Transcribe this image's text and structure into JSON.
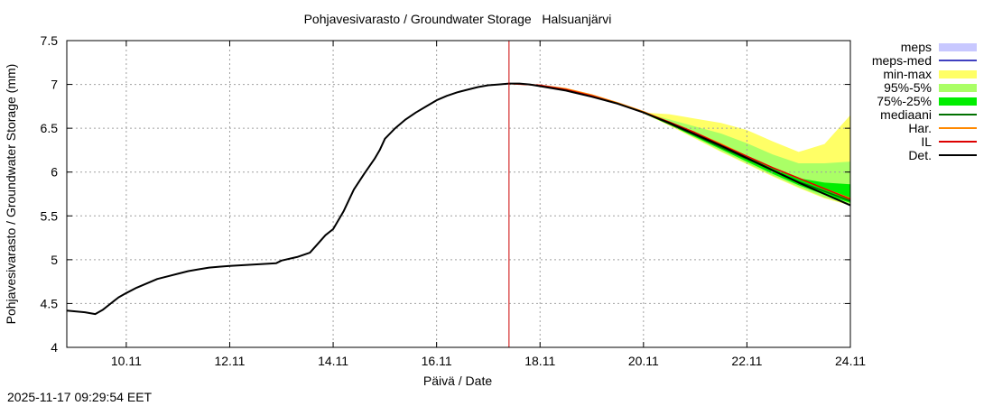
{
  "chart_data": {
    "type": "area",
    "title": "Pohjavesivarasto / Groundwater Storage   Halsuanjärvi",
    "xlabel": "Päivä / Date",
    "ylabel": "Pohjavesivarasto / Groundwater Storage (mm)",
    "xlim": [
      8.85,
      24.0
    ],
    "ylim": [
      4.0,
      7.5
    ],
    "xticks": [
      10,
      12,
      14,
      16,
      18,
      20,
      22,
      24
    ],
    "xtick_labels": [
      "10.11",
      "12.11",
      "14.11",
      "16.11",
      "18.11",
      "20.11",
      "22.11",
      "24.11"
    ],
    "yticks": [
      4,
      4.5,
      5,
      5.5,
      6,
      6.5,
      7,
      7.5
    ],
    "ytick_labels": [
      "4",
      "4.5",
      "5",
      "5.5",
      "6",
      "6.5",
      "7",
      "7.5"
    ],
    "grid": true,
    "legend_position": "right",
    "forecast_start": 17.4,
    "legend": [
      {
        "label": "meps",
        "color": "#c8c8ff",
        "kind": "band"
      },
      {
        "label": "meps-med",
        "color": "#4040c0",
        "kind": "line"
      },
      {
        "label": "min-max",
        "color": "#ffff66",
        "kind": "band"
      },
      {
        "label": "95%-5%",
        "color": "#aaff66",
        "kind": "band"
      },
      {
        "label": "75%-25%",
        "color": "#00ee00",
        "kind": "band"
      },
      {
        "label": "mediaani",
        "color": "#007000",
        "kind": "line"
      },
      {
        "label": "Har.",
        "color": "#ff8800",
        "kind": "line"
      },
      {
        "label": "IL",
        "color": "#dd0000",
        "kind": "line"
      },
      {
        "label": "Det.",
        "color": "#000000",
        "kind": "line"
      }
    ],
    "series": [
      {
        "name": "Det.",
        "color": "#000000",
        "x": [
          8.85,
          9.2,
          9.4,
          9.55,
          9.7,
          9.85,
          10.0,
          10.2,
          10.4,
          10.6,
          10.8,
          11.0,
          11.2,
          11.4,
          11.6,
          11.8,
          12.0,
          12.3,
          12.6,
          12.9,
          13.0,
          13.3,
          13.55,
          13.7,
          13.85,
          14.0,
          14.2,
          14.4,
          14.6,
          14.8,
          14.9,
          15.0,
          15.2,
          15.4,
          15.6,
          15.8,
          16.0,
          16.2,
          16.4,
          16.6,
          16.8,
          17.0,
          17.2,
          17.4,
          17.6,
          17.8,
          18.0,
          18.5,
          19.0,
          19.5,
          20.0,
          20.5,
          21.0,
          21.5,
          22.0,
          22.5,
          23.0,
          23.5,
          24.0
        ],
        "y": [
          4.42,
          4.4,
          4.38,
          4.43,
          4.5,
          4.57,
          4.62,
          4.68,
          4.73,
          4.78,
          4.81,
          4.84,
          4.87,
          4.89,
          4.91,
          4.92,
          4.93,
          4.94,
          4.95,
          4.96,
          4.99,
          5.03,
          5.08,
          5.18,
          5.28,
          5.35,
          5.55,
          5.8,
          5.98,
          6.15,
          6.25,
          6.38,
          6.5,
          6.6,
          6.68,
          6.75,
          6.82,
          6.87,
          6.91,
          6.94,
          6.97,
          6.99,
          7.0,
          7.01,
          7.01,
          7.0,
          6.98,
          6.93,
          6.86,
          6.78,
          6.68,
          6.56,
          6.43,
          6.3,
          6.16,
          6.02,
          5.88,
          5.75,
          5.62
        ]
      },
      {
        "name": "IL",
        "color": "#dd0000",
        "x": [
          17.4,
          18.0,
          18.5,
          19.0,
          19.5,
          20.0,
          20.5,
          21.0,
          21.5,
          22.0,
          22.5,
          23.0,
          23.5,
          24.0
        ],
        "y": [
          7.01,
          6.99,
          6.94,
          6.87,
          6.78,
          6.68,
          6.57,
          6.45,
          6.31,
          6.18,
          6.05,
          5.93,
          5.81,
          5.69
        ]
      },
      {
        "name": "Har.",
        "color": "#ff8800",
        "x": [
          17.4,
          18.0,
          18.5,
          19.0,
          19.5,
          20.0,
          20.5,
          21.0,
          21.5,
          22.0,
          22.5,
          23.0,
          23.5,
          24.0
        ],
        "y": [
          7.01,
          6.99,
          6.95,
          6.88,
          6.79,
          6.69,
          6.57,
          6.45,
          6.32,
          6.18,
          6.05,
          5.93,
          5.81,
          5.7
        ]
      },
      {
        "name": "mediaani",
        "color": "#007000",
        "x": [
          20.0,
          20.5,
          21.0,
          21.5,
          22.0,
          22.5,
          23.0,
          23.5,
          24.0
        ],
        "y": [
          6.68,
          6.55,
          6.42,
          6.28,
          6.15,
          6.02,
          5.89,
          5.78,
          5.67
        ]
      }
    ],
    "bands": [
      {
        "name": "min-max",
        "color": "#ffff66",
        "x": [
          20.0,
          20.5,
          21.0,
          21.5,
          22.0,
          22.5,
          23.0,
          23.5,
          24.0
        ],
        "upper": [
          6.68,
          6.66,
          6.61,
          6.56,
          6.48,
          6.35,
          6.23,
          6.32,
          6.65
        ],
        "lower": [
          6.67,
          6.53,
          6.38,
          6.23,
          6.09,
          5.95,
          5.82,
          5.7,
          5.62
        ]
      },
      {
        "name": "95%-5%",
        "color": "#aaff66",
        "x": [
          20.0,
          20.5,
          21.0,
          21.5,
          22.0,
          22.5,
          23.0,
          23.5,
          24.0
        ],
        "upper": [
          6.68,
          6.6,
          6.52,
          6.44,
          6.33,
          6.2,
          6.1,
          6.1,
          6.12
        ],
        "lower": [
          6.67,
          6.54,
          6.39,
          6.24,
          6.1,
          5.96,
          5.83,
          5.71,
          5.63
        ]
      },
      {
        "name": "75%-25%",
        "color": "#00ee00",
        "x": [
          20.0,
          20.5,
          21.0,
          21.5,
          22.0,
          22.5,
          23.0,
          23.5,
          24.0
        ],
        "upper": [
          6.68,
          6.56,
          6.44,
          6.31,
          6.18,
          6.05,
          5.93,
          5.88,
          5.86
        ],
        "lower": [
          6.67,
          6.54,
          6.4,
          6.26,
          6.12,
          5.98,
          5.85,
          5.74,
          5.65
        ]
      }
    ]
  },
  "footer": {
    "timestamp": "2025-11-17 09:29:54 EET"
  }
}
